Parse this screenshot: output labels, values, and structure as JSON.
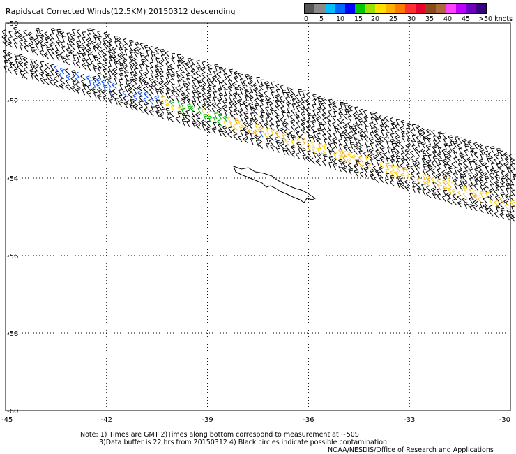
{
  "title": "Rapidscat Corrected Winds(12.5KM) 20150312 descending",
  "legend": {
    "colors": [
      "#555555",
      "#8a8a8a",
      "#00c0ff",
      "#0066ff",
      "#0000ff",
      "#00c800",
      "#a0e000",
      "#ffe000",
      "#ffb000",
      "#ff7a00",
      "#ff3030",
      "#e8002e",
      "#8a4a1a",
      "#a86a3a",
      "#ff40ff",
      "#c000ff",
      "#7000c0",
      "#3a0080"
    ],
    "labels": [
      "0",
      "5",
      "10",
      "15",
      "20",
      "25",
      "30",
      "35",
      "40",
      "45",
      ">50 knots"
    ]
  },
  "axes": {
    "lon_ticks": [
      "-45",
      "-42",
      "-39",
      "-36",
      "-33",
      "-30"
    ],
    "lat_ticks": [
      "-50",
      "-52",
      "-54",
      "-56",
      "-58",
      "-60"
    ]
  },
  "notes": [
    "Note: 1) Times are GMT 2)Times along bottom correspond to measurement at ~50S",
    "3)Data buffer is 22 hrs from 20150312 4) Black circles indicate possible contamination",
    "NOAA/NESDIS/Office of Research and Applications"
  ],
  "map": {
    "lon_range": [
      -45,
      -30
    ],
    "lat_range": [
      -60,
      -50
    ],
    "swath_barb_color": "#000000",
    "land_name": "South Georgia"
  }
}
